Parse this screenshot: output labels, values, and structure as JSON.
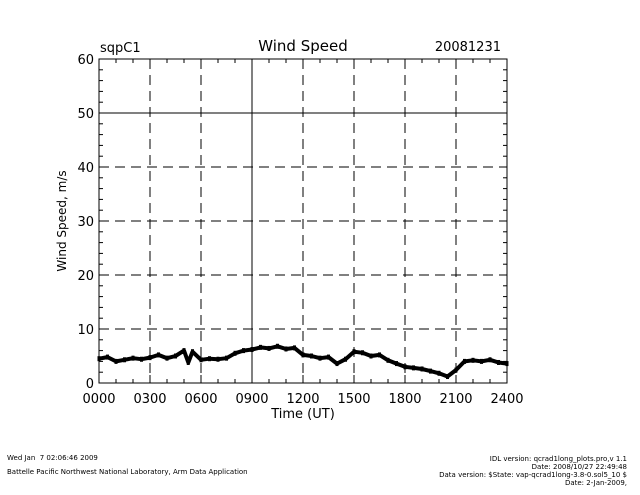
{
  "chart_data": {
    "type": "line",
    "title": "Wind Speed",
    "site": "sqpC1",
    "date": "20081231",
    "xlabel": "Time (UT)",
    "ylabel": "Wind Speed, m/s",
    "xlim": [
      0,
      24
    ],
    "ylim": [
      0,
      60
    ],
    "grid": true,
    "x_tick_values": [
      0,
      3,
      6,
      9,
      12,
      15,
      18,
      21,
      24
    ],
    "x_tick_labels": [
      "0000",
      "0300",
      "0600",
      "0900",
      "1200",
      "1500",
      "1800",
      "2100",
      "2400"
    ],
    "y_tick_values": [
      0,
      10,
      20,
      30,
      40,
      50,
      60
    ],
    "y_tick_labels": [
      "0",
      "10",
      "20",
      "30",
      "40",
      "50",
      "60"
    ],
    "series": [
      {
        "name": "Wind Speed",
        "color": "#000000",
        "x": [
          0,
          0.5,
          1,
          1.5,
          2,
          2.5,
          3,
          3.5,
          4,
          4.5,
          5,
          5.25,
          5.5,
          6,
          6.5,
          7,
          7.5,
          8,
          8.5,
          9,
          9.5,
          10,
          10.5,
          11,
          11.5,
          12,
          12.5,
          13,
          13.5,
          14,
          14.5,
          15,
          15.5,
          16,
          16.5,
          17,
          17.5,
          18,
          18.5,
          19,
          19.5,
          20,
          20.5,
          21,
          21.5,
          22,
          22.5,
          23,
          23.5,
          24
        ],
        "y": [
          4.5,
          4.8,
          4.0,
          4.3,
          4.6,
          4.4,
          4.7,
          5.2,
          4.6,
          5.0,
          6.0,
          3.8,
          5.8,
          4.3,
          4.5,
          4.4,
          4.6,
          5.5,
          6.0,
          6.2,
          6.6,
          6.4,
          6.8,
          6.3,
          6.5,
          5.2,
          5.0,
          4.6,
          4.8,
          3.6,
          4.4,
          5.8,
          5.6,
          5.0,
          5.2,
          4.2,
          3.6,
          3.0,
          2.8,
          2.6,
          2.2,
          1.8,
          1.2,
          2.4,
          4.0,
          4.2,
          4.0,
          4.3,
          3.8,
          3.6
        ]
      }
    ]
  },
  "footer": {
    "timestamp": "Wed Jan  7 02:06:46 2009",
    "organization": "Battelle Pacific Northwest National Laboratory, Arm Data Application",
    "idl_version": "IDL version: qcrad1long_plots.pro,v 1.1",
    "idl_date": "Date: 2008/10/27 22:49:48",
    "data_version": "Data version: $State: vap-qcrad1long-3.8-0.sol5_10 $",
    "data_date": "Date: 2-Jan-2009,"
  }
}
